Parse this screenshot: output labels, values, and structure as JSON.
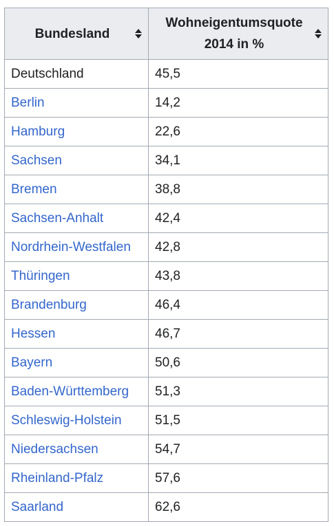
{
  "table": {
    "headers": {
      "land": "Bundesland",
      "quote_line1": "Wohneigentumsquote",
      "quote_line2": "2014 in %"
    },
    "rows": [
      {
        "land": "Deutschland",
        "quote": "45,5",
        "is_link": false
      },
      {
        "land": "Berlin",
        "quote": "14,2",
        "is_link": true
      },
      {
        "land": "Hamburg",
        "quote": "22,6",
        "is_link": true
      },
      {
        "land": "Sachsen",
        "quote": "34,1",
        "is_link": true
      },
      {
        "land": "Bremen",
        "quote": "38,8",
        "is_link": true
      },
      {
        "land": "Sachsen-Anhalt",
        "quote": "42,4",
        "is_link": true
      },
      {
        "land": "Nordrhein-Westfalen",
        "quote": "42,8",
        "is_link": true
      },
      {
        "land": "Thüringen",
        "quote": "43,8",
        "is_link": true
      },
      {
        "land": "Brandenburg",
        "quote": "46,4",
        "is_link": true
      },
      {
        "land": "Hessen",
        "quote": "46,7",
        "is_link": true
      },
      {
        "land": "Bayern",
        "quote": "50,6",
        "is_link": true
      },
      {
        "land": "Baden-Württemberg",
        "quote": "51,3",
        "is_link": true
      },
      {
        "land": "Schleswig-Holstein",
        "quote": "51,5",
        "is_link": true
      },
      {
        "land": "Niedersachsen",
        "quote": "54,7",
        "is_link": true
      },
      {
        "land": "Rheinland-Pfalz",
        "quote": "57,6",
        "is_link": true
      },
      {
        "land": "Saarland",
        "quote": "62,6",
        "is_link": true
      }
    ]
  },
  "colors": {
    "link": "#3366cc",
    "text": "#202122",
    "header_bg": "#eaecf0",
    "border": "#a2a9b1"
  },
  "icons": {
    "sort": "sort-icon"
  }
}
